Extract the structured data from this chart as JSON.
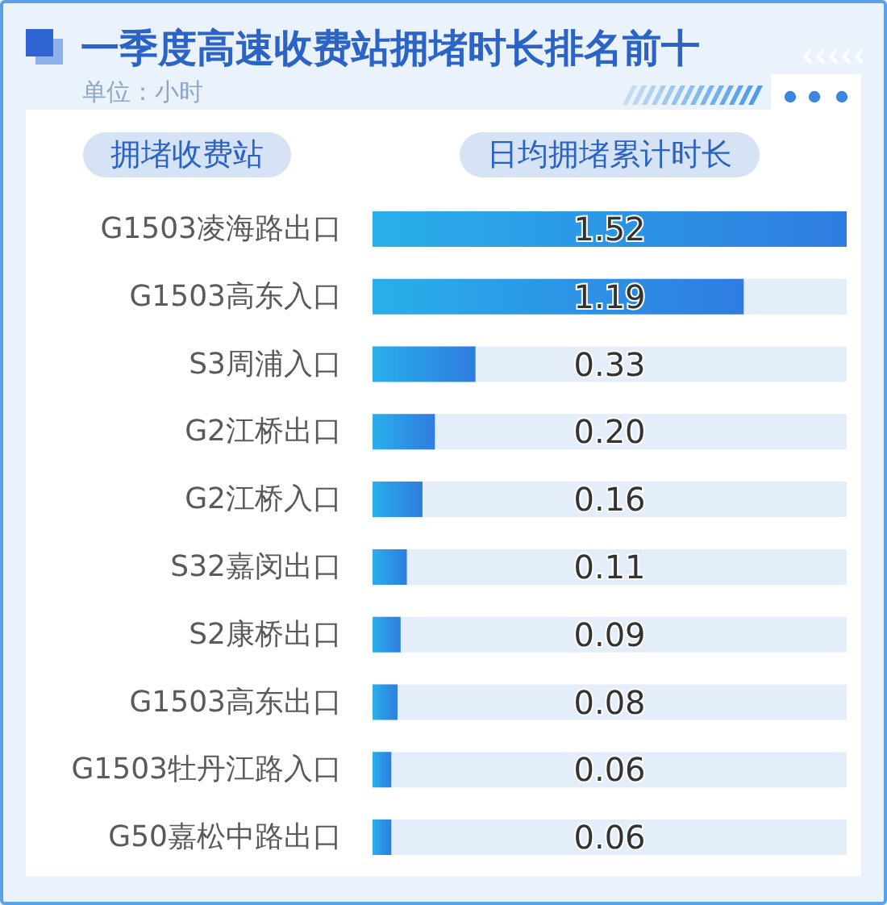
{
  "chart_data": {
    "type": "bar",
    "orientation": "horizontal",
    "title": "一季度高速收费站拥堵时长排名前十",
    "subtitle": "单位：小时",
    "ylabel": "拥堵收费站",
    "xlabel": "日均拥堵累计时长",
    "categories": [
      "G1503凌海路出口",
      "G1503高东入口",
      "S3周浦入口",
      "G2江桥出口",
      "G2江桥入口",
      "S32嘉闵出口",
      "S2康桥出口",
      "G1503高东出口",
      "G1503牡丹江路入口",
      "G50嘉松中路出口"
    ],
    "values": [
      1.52,
      1.19,
      0.33,
      0.2,
      0.16,
      0.11,
      0.09,
      0.08,
      0.06,
      0.06
    ],
    "value_labels": [
      "1.52",
      "1.19",
      "0.33",
      "0.20",
      "0.16",
      "0.11",
      "0.09",
      "0.08",
      "0.06",
      "0.06"
    ],
    "color": "#2d93e4",
    "tick_labels": "y"
  }
}
